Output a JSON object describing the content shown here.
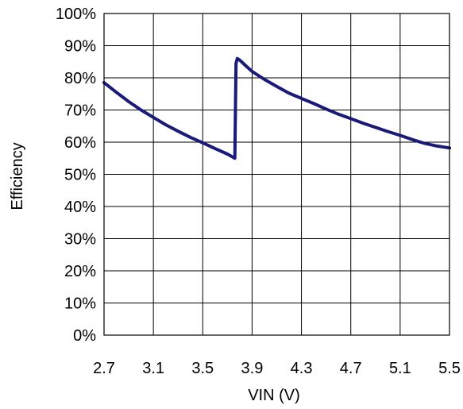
{
  "chart_data": {
    "type": "line",
    "xlabel": "VIN (V)",
    "ylabel": "Efficiency",
    "xlim": [
      2.7,
      5.5
    ],
    "ylim": [
      0,
      100
    ],
    "x_ticks": [
      "2.7",
      "3.1",
      "3.5",
      "3.9",
      "4.3",
      "4.7",
      "5.1",
      "5.5"
    ],
    "x_tick_values": [
      2.7,
      3.1,
      3.5,
      3.9,
      4.3,
      4.7,
      5.1,
      5.5
    ],
    "y_ticks": [
      "0%",
      "10%",
      "20%",
      "30%",
      "40%",
      "50%",
      "60%",
      "70%",
      "80%",
      "90%",
      "100%"
    ],
    "y_tick_values": [
      0,
      10,
      20,
      30,
      40,
      50,
      60,
      70,
      80,
      90,
      100
    ],
    "grid": true,
    "line_color": "#1a1a78",
    "series": [
      {
        "x": [
          2.7,
          2.8,
          2.9,
          3.0,
          3.1,
          3.2,
          3.3,
          3.4,
          3.5,
          3.6,
          3.7,
          3.76,
          3.77,
          3.78,
          3.8,
          3.85,
          3.9,
          4.0,
          4.1,
          4.2,
          4.3,
          4.4,
          4.5,
          4.6,
          4.7,
          4.8,
          4.9,
          5.0,
          5.1,
          5.2,
          5.3,
          5.4,
          5.5
        ],
        "values": [
          78.5,
          75.5,
          72.6,
          70.0,
          67.7,
          65.4,
          63.4,
          61.5,
          59.8,
          58.0,
          56.3,
          55.0,
          84.5,
          86.0,
          85.5,
          83.7,
          82.0,
          79.5,
          77.3,
          75.2,
          73.6,
          72.0,
          70.3,
          68.7,
          67.3,
          65.9,
          64.6,
          63.3,
          62.1,
          60.8,
          59.6,
          58.8,
          58.2
        ]
      }
    ]
  }
}
